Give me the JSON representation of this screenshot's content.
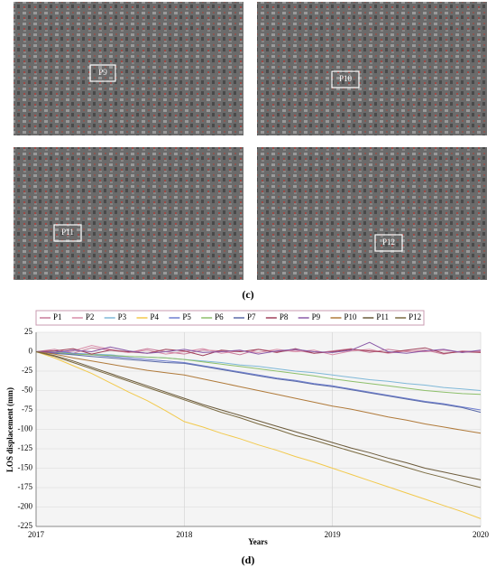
{
  "figure_c": {
    "label": "(c)",
    "panels": [
      {
        "point": "P9"
      },
      {
        "point": "P10"
      },
      {
        "point": "P11"
      },
      {
        "point": "P12"
      }
    ]
  },
  "chart_data": {
    "type": "line",
    "caption": "(d)",
    "x_label": "Years",
    "y_label": "LOS displacement (mm)",
    "x": [
      2017,
      2017.125,
      2017.25,
      2017.375,
      2017.5,
      2017.625,
      2017.75,
      2017.875,
      2018,
      2018.125,
      2018.25,
      2018.375,
      2018.5,
      2018.625,
      2018.75,
      2018.875,
      2019,
      2019.125,
      2019.25,
      2019.375,
      2019.5,
      2019.625,
      2019.75,
      2019.875,
      2020
    ],
    "xlim": [
      2017,
      2020
    ],
    "xticks": [
      2017,
      2018,
      2019,
      2020
    ],
    "ylim": [
      -225,
      25
    ],
    "yticks": [
      25,
      0,
      -25,
      -50,
      -75,
      -100,
      -125,
      -150,
      -175,
      -200,
      -225
    ],
    "grid": true,
    "legend": "top",
    "series": [
      {
        "name": "P1",
        "color": "#c97b9a",
        "values": [
          0,
          3,
          -2,
          5,
          2,
          -1,
          4,
          0,
          -3,
          2,
          1,
          -4,
          3,
          0,
          2,
          -2,
          1,
          4,
          -1,
          3,
          0,
          2,
          -3,
          1,
          0
        ]
      },
      {
        "name": "P2",
        "color": "#d98ca8",
        "values": [
          0,
          -2,
          1,
          8,
          3,
          -1,
          2,
          -3,
          0,
          4,
          -2,
          1,
          -1,
          3,
          0,
          2,
          -4,
          1,
          3,
          -2,
          1,
          0,
          2,
          -1,
          1
        ]
      },
      {
        "name": "P3",
        "color": "#7fb8d8",
        "values": [
          0,
          -1,
          -2,
          -3,
          -4,
          -6,
          -7,
          -8,
          -10,
          -12,
          -14,
          -17,
          -19,
          -22,
          -25,
          -27,
          -30,
          -33,
          -36,
          -38,
          -41,
          -43,
          -46,
          -48,
          -50
        ]
      },
      {
        "name": "P4",
        "color": "#f2c94c",
        "values": [
          0,
          -8,
          -18,
          -28,
          -40,
          -52,
          -63,
          -76,
          -90,
          -97,
          -105,
          -112,
          -120,
          -127,
          -135,
          -142,
          -150,
          -158,
          -166,
          -174,
          -182,
          -190,
          -198,
          -206,
          -215
        ]
      },
      {
        "name": "P5",
        "color": "#6f7fd0",
        "values": [
          0,
          1,
          -2,
          -4,
          -6,
          -8,
          -10,
          -12,
          -14,
          -18,
          -22,
          -26,
          -30,
          -34,
          -37,
          -41,
          -44,
          -48,
          -52,
          -56,
          -60,
          -64,
          -67,
          -71,
          -75
        ]
      },
      {
        "name": "P6",
        "color": "#8dbf6a",
        "values": [
          0,
          -1,
          -3,
          -4,
          -5,
          -6,
          -7,
          -8,
          -10,
          -13,
          -16,
          -19,
          -22,
          -25,
          -28,
          -31,
          -35,
          -38,
          -41,
          -44,
          -47,
          -50,
          -52,
          -54,
          -55
        ]
      },
      {
        "name": "P7",
        "color": "#5a6aa8",
        "values": [
          0,
          -2,
          -4,
          -6,
          -8,
          -10,
          -12,
          -14,
          -15,
          -19,
          -23,
          -27,
          -31,
          -35,
          -38,
          -42,
          -45,
          -49,
          -53,
          -57,
          -61,
          -65,
          -68,
          -72,
          -78
        ]
      },
      {
        "name": "P8",
        "color": "#a0405a",
        "values": [
          0,
          1,
          4,
          -3,
          2,
          0,
          -2,
          3,
          1,
          -5,
          2,
          0,
          3,
          -1,
          4,
          -2,
          0,
          3,
          1,
          -1,
          2,
          5,
          -2,
          0,
          -1
        ]
      },
      {
        "name": "P9",
        "color": "#8a5aa8",
        "values": [
          0,
          -1,
          2,
          0,
          6,
          1,
          -2,
          0,
          3,
          -1,
          0,
          2,
          -3,
          1,
          3,
          0,
          -1,
          2,
          12,
          0,
          -2,
          1,
          3,
          -1,
          2
        ]
      },
      {
        "name": "P10",
        "color": "#b07a3a",
        "values": [
          0,
          -3,
          -8,
          -12,
          -16,
          -20,
          -24,
          -27,
          -30,
          -35,
          -40,
          -45,
          -50,
          -55,
          -60,
          -65,
          -70,
          -74,
          -79,
          -84,
          -88,
          -93,
          -97,
          -101,
          -105
        ]
      },
      {
        "name": "P11",
        "color": "#6b5a3a",
        "values": [
          0,
          -5,
          -12,
          -20,
          -28,
          -36,
          -44,
          -52,
          -60,
          -68,
          -75,
          -82,
          -89,
          -96,
          -103,
          -110,
          -117,
          -124,
          -130,
          -137,
          -143,
          -150,
          -155,
          -160,
          -165
        ]
      },
      {
        "name": "P12",
        "color": "#7a6a40",
        "values": [
          0,
          -6,
          -14,
          -22,
          -30,
          -38,
          -46,
          -54,
          -62,
          -70,
          -78,
          -85,
          -93,
          -100,
          -108,
          -114,
          -121,
          -128,
          -135,
          -142,
          -149,
          -156,
          -162,
          -169,
          -175
        ]
      }
    ]
  }
}
